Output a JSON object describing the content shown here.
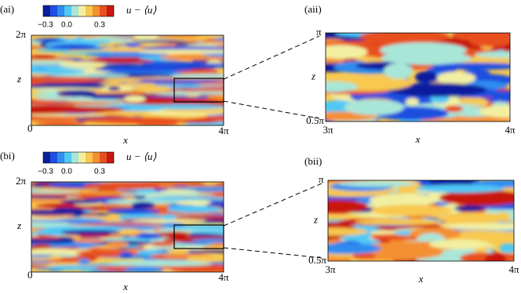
{
  "panels": [
    {
      "label": "(ai)",
      "colorbar": {
        "label": "u − ⟨u⟩",
        "ticks": [
          "−0.3",
          "0.0",
          "0.3"
        ]
      },
      "y_label": "z",
      "x_label": "x",
      "y_ticks": [
        "2π",
        "0"
      ],
      "x_ticks": [
        "4π"
      ]
    },
    {
      "label": "(aii)",
      "y_label": "z",
      "x_label": "x",
      "y_ticks": [
        "π",
        "0.5π"
      ],
      "x_ticks": [
        "3π",
        "4π"
      ]
    },
    {
      "label": "(bi)",
      "colorbar": {
        "label": "u − ⟨u⟩",
        "ticks": [
          "−0.3",
          "0.0",
          "0.3"
        ]
      },
      "y_label": "z",
      "x_label": "x",
      "y_ticks": [
        "2π",
        "0"
      ],
      "x_ticks": [
        "4π"
      ]
    },
    {
      "label": "(bii)",
      "y_label": "z",
      "x_label": "x",
      "y_ticks": [
        "π",
        "0.5π"
      ],
      "x_ticks": [
        "3π",
        "4π"
      ]
    }
  ]
}
